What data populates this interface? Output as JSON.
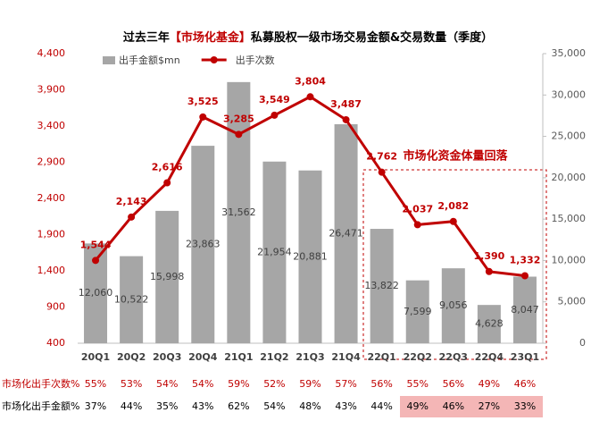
{
  "chart_data": {
    "type": "combo",
    "title": [
      "过去三年",
      "【市场化基金】",
      "私募股权一级市场交易金额&交易数量（季度）"
    ],
    "categories": [
      "20Q1",
      "20Q2",
      "20Q3",
      "20Q4",
      "21Q1",
      "21Q2",
      "21Q3",
      "21Q4",
      "22Q1",
      "22Q2",
      "22Q3",
      "22Q4",
      "23Q1"
    ],
    "series": [
      {
        "name": "出手金额$mn",
        "type": "bar",
        "axis": "y2",
        "color": "#a6a6a6",
        "values": [
          12060,
          10522,
          15998,
          23863,
          31562,
          21954,
          20881,
          26471,
          13822,
          7599,
          9056,
          4628,
          8047
        ],
        "value_labels": [
          "12,060",
          "10,522",
          "15,998",
          "23,863",
          "31,562",
          "21,954",
          "20,881",
          "26,471",
          "13,822",
          "7,599",
          "9,056",
          "4,628",
          "8,047"
        ]
      },
      {
        "name": "出手次数",
        "type": "line",
        "color": "#c00000",
        "values": [
          1544,
          2143,
          2616,
          3525,
          3285,
          3549,
          3804,
          3487,
          2762,
          2037,
          2082,
          1390,
          1332
        ],
        "value_labels": [
          "1,544",
          "2,143",
          "2,616",
          "3,525",
          "3,285",
          "3,549",
          "3,804",
          "3,487",
          "2,762",
          "2,037",
          "2,082",
          "1,390",
          "1,332"
        ]
      }
    ],
    "ylim": [
      400,
      4400
    ],
    "yticks": [
      400,
      900,
      {
        "value": 1400,
        "label": "1,400"
      },
      {
        "value": 1900,
        "label": "1,900"
      },
      {
        "value": 2400,
        "label": "2,400"
      },
      {
        "value": 2900,
        "label": "2,900"
      },
      {
        "value": 3400,
        "label": "3,400"
      },
      {
        "value": 3900,
        "label": "3,900"
      },
      {
        "value": 4400,
        "label": "4,400"
      }
    ],
    "y2lim": [
      0,
      35000
    ],
    "y2ticks": [
      0,
      {
        "value": 5000,
        "label": "5,000"
      },
      {
        "value": 10000,
        "label": "10,000"
      },
      {
        "value": 15000,
        "label": "15,000"
      },
      {
        "value": 20000,
        "label": "20,000"
      },
      {
        "value": 25000,
        "label": "25,000"
      },
      {
        "value": 30000,
        "label": "30,000"
      },
      {
        "value": 35000,
        "label": "35,000"
      }
    ],
    "annotation": "市场化资金体量回落",
    "table": {
      "rows": [
        {
          "label": "市场化出手次数%",
          "color": "#c00000",
          "values": [
            "55%",
            "53%",
            "54%",
            "54%",
            "59%",
            "52%",
            "59%",
            "57%",
            "56%",
            "55%",
            "56%",
            "49%",
            "46%"
          ]
        },
        {
          "label": "市场化出手金额%",
          "color": "#000000",
          "values": [
            "37%",
            "44%",
            "35%",
            "43%",
            "62%",
            "54%",
            "48%",
            "43%",
            "44%",
            "49%",
            "46%",
            "27%",
            "33%"
          ]
        }
      ]
    }
  }
}
